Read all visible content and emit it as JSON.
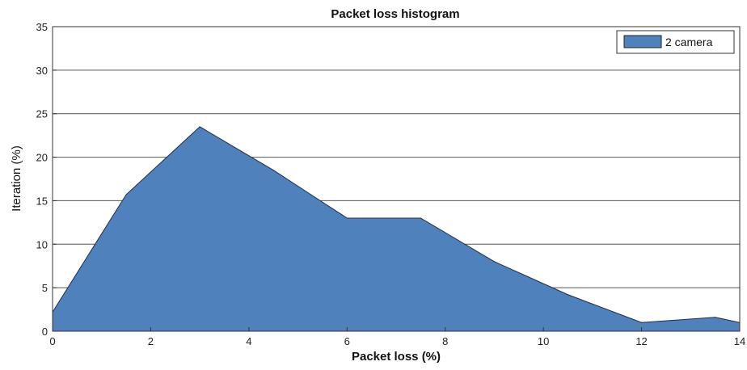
{
  "chart_data": {
    "type": "area",
    "title": "Packet loss histogram",
    "xlabel": "Packet loss (%)",
    "ylabel": "Iteration (%)",
    "xlim": [
      0,
      14
    ],
    "ylim": [
      0,
      35
    ],
    "xticks": [
      0,
      2,
      4,
      6,
      8,
      10,
      12,
      14
    ],
    "yticks": [
      0,
      5,
      10,
      15,
      20,
      25,
      30,
      35
    ],
    "grid": "horizontal",
    "legend_position": "top-right",
    "series": [
      {
        "name": "2 camera",
        "color": "#4f81bd",
        "x": [
          0,
          1.5,
          3,
          4.5,
          6,
          7.5,
          9,
          10.5,
          12,
          13.5,
          14
        ],
        "y": [
          2.2,
          15.7,
          23.5,
          18.5,
          13,
          13,
          8,
          4.2,
          1,
          1.6,
          1
        ]
      }
    ]
  }
}
